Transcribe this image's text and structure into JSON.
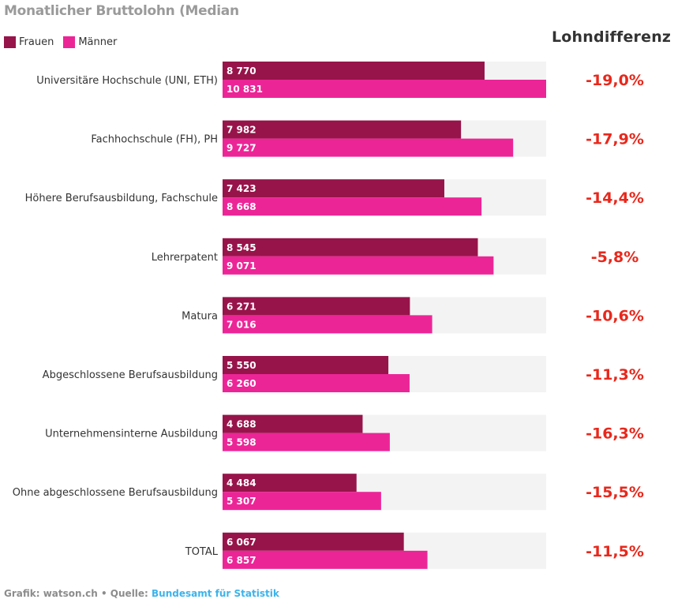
{
  "chart_data": {
    "type": "bar",
    "orientation": "horizontal",
    "title": "Monatlicher Bruttolohn (Median",
    "xlabel": "",
    "ylabel": "",
    "xlim": [
      0,
      10831
    ],
    "grid": false,
    "legend_position": "top-left",
    "categories": [
      "Universitäre Hochschule (UNI, ETH)",
      "Fachhochschule (FH), PH",
      "Höhere Berufsausbildung, Fachschule",
      "Lehrerpatent",
      "Matura",
      "Abgeschlossene Berufsausbildung",
      "Unternehmensinterne Ausbildung",
      "Ohne abgeschlossene Berufsausbildung",
      "TOTAL"
    ],
    "series": [
      {
        "name": "Frauen",
        "color": "#97144a",
        "values": [
          8770,
          7982,
          7423,
          8545,
          6271,
          5550,
          4688,
          4484,
          6067
        ],
        "labels": [
          "8 770",
          "7 982",
          "7 423",
          "8 545",
          "6 271",
          "5 550",
          "4 688",
          "4 484",
          "6 067"
        ]
      },
      {
        "name": "Männer",
        "color": "#ec2597",
        "values": [
          10831,
          9727,
          8668,
          9071,
          7016,
          6260,
          5598,
          5307,
          6857
        ],
        "labels": [
          "10 831",
          "9 727",
          "8 668",
          "9 071",
          "7 016",
          "6 260",
          "5 598",
          "5 307",
          "6 857"
        ]
      }
    ],
    "side_column": {
      "header": "Lohndifferenz",
      "values": [
        -19.0,
        -17.9,
        -14.4,
        -5.8,
        -10.6,
        -11.3,
        -16.3,
        -15.5,
        -11.5
      ],
      "labels": [
        "-19,0%",
        "-17,9%",
        "-14,4%",
        "-5,8%",
        "-10,6%",
        "-11,3%",
        "-16,3%",
        "-15,5%",
        "-11,5%"
      ],
      "color": "#e8281c"
    },
    "track_color": "#f3f3f3"
  },
  "footer": {
    "credit": "Grafik: watson.ch • Quelle: ",
    "source": "Bundesamt für Statistik"
  }
}
